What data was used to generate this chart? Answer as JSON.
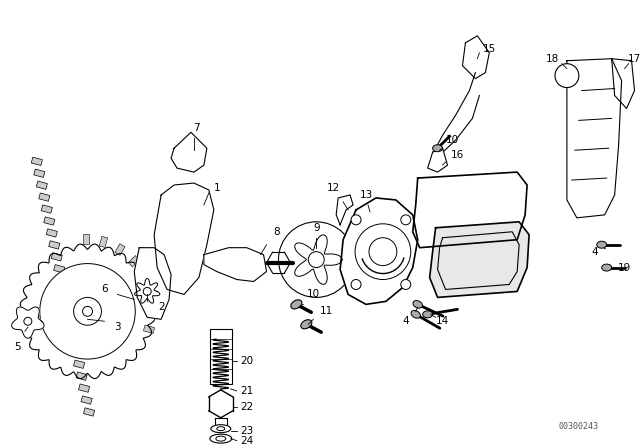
{
  "bg_color": "#ffffff",
  "line_color": "#000000",
  "fig_width": 6.4,
  "fig_height": 4.48,
  "dpi": 100,
  "watermark": "00300243"
}
